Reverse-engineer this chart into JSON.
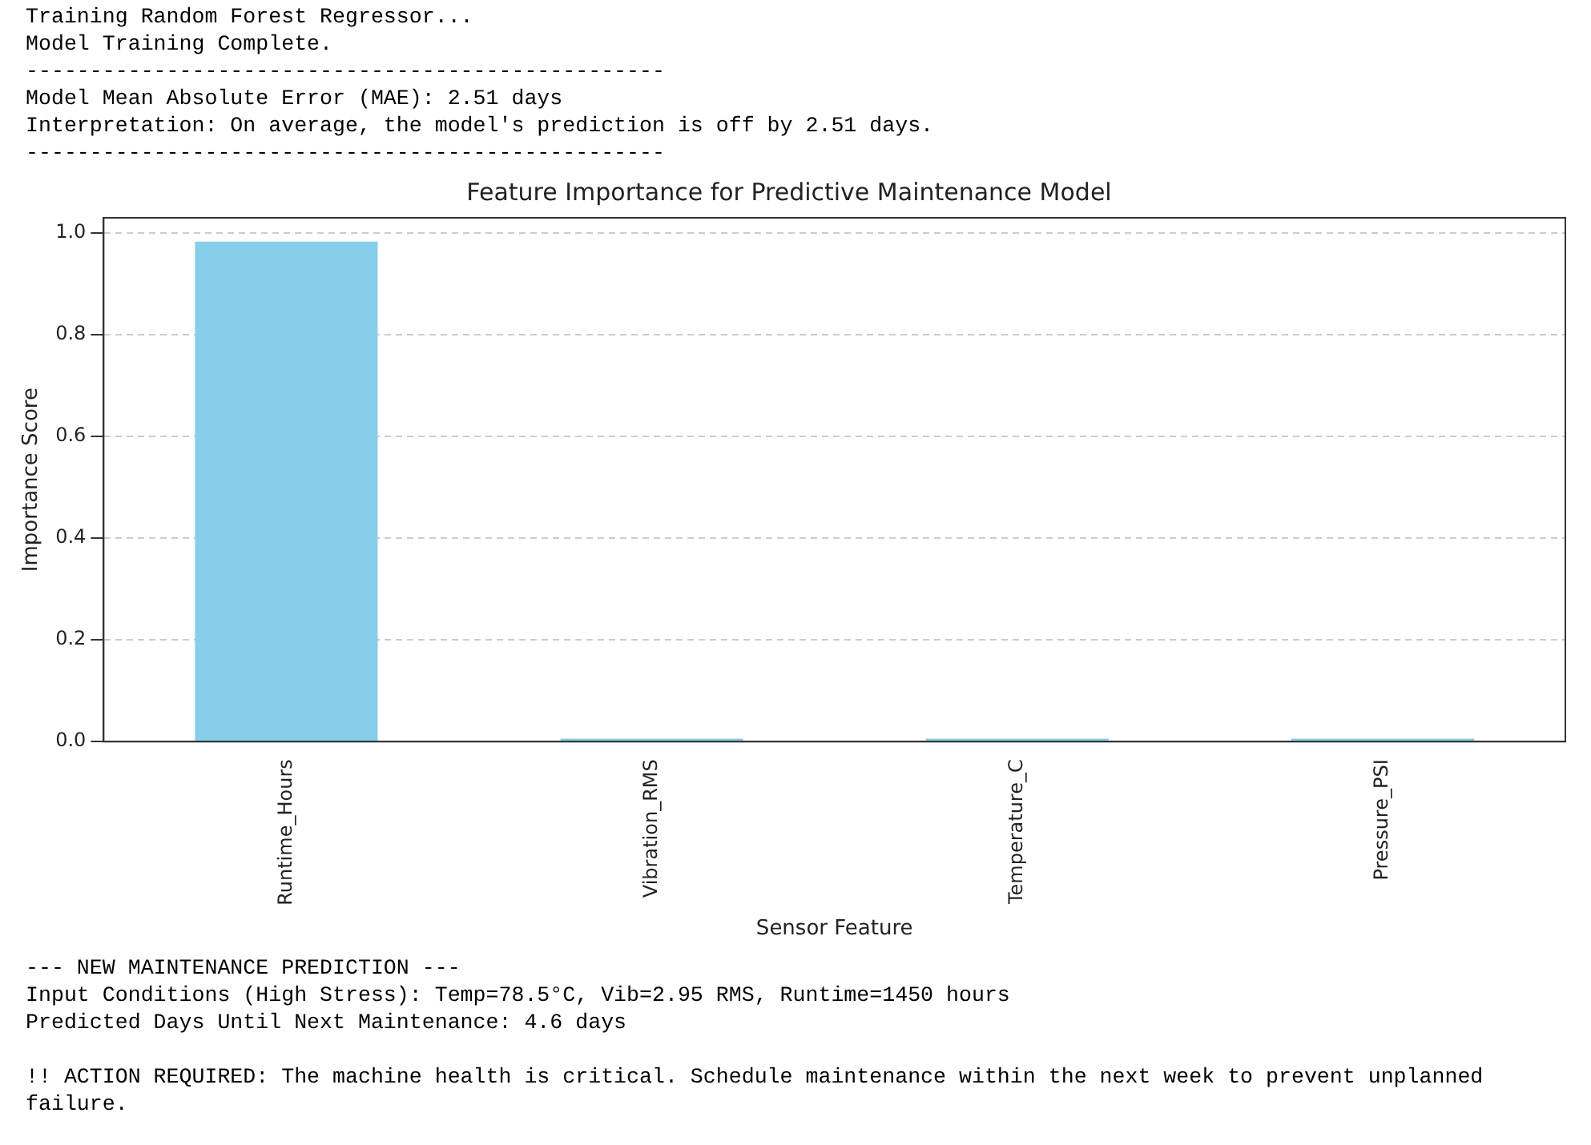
{
  "chart_data": {
    "type": "bar",
    "title": "Feature Importance for Predictive Maintenance Model",
    "xlabel": "Sensor Feature",
    "ylabel": "Importance Score",
    "categories": [
      "Runtime_Hours",
      "Vibration_RMS",
      "Temperature_C",
      "Pressure_PSI"
    ],
    "values": [
      0.983,
      0.006,
      0.006,
      0.006
    ],
    "color": "#87ceeb",
    "ylim": [
      0,
      1.03
    ],
    "yticks": [
      {
        "value": 0,
        "label": "0.0"
      },
      {
        "value": 0.2,
        "label": "0.2"
      },
      {
        "value": 0.4,
        "label": "0.4"
      },
      {
        "value": 0.6,
        "label": "0.6"
      },
      {
        "value": 0.8,
        "label": "0.8"
      },
      {
        "value": 1,
        "label": "1.0"
      }
    ],
    "grid": "y",
    "legend": false,
    "annotations": [
      "Training Random Forest Regressor...",
      "Model Training Complete.",
      "--------------------------------------------------",
      "Model Mean Absolute Error (MAE): 2.51 days",
      "Interpretation: On average, the model's prediction is off by 2.51 days.",
      "--------------------------------------------------",
      "--- NEW MAINTENANCE PREDICTION ---",
      "Input Conditions (High Stress): Temp=78.5°C, Vib=2.95 RMS, Runtime=1450 hours",
      "Predicted Days Until Next Maintenance: 4.6 days",
      "!! ACTION REQUIRED: The machine health is critical. Schedule maintenance within the next week to prevent unplanned failure."
    ]
  }
}
